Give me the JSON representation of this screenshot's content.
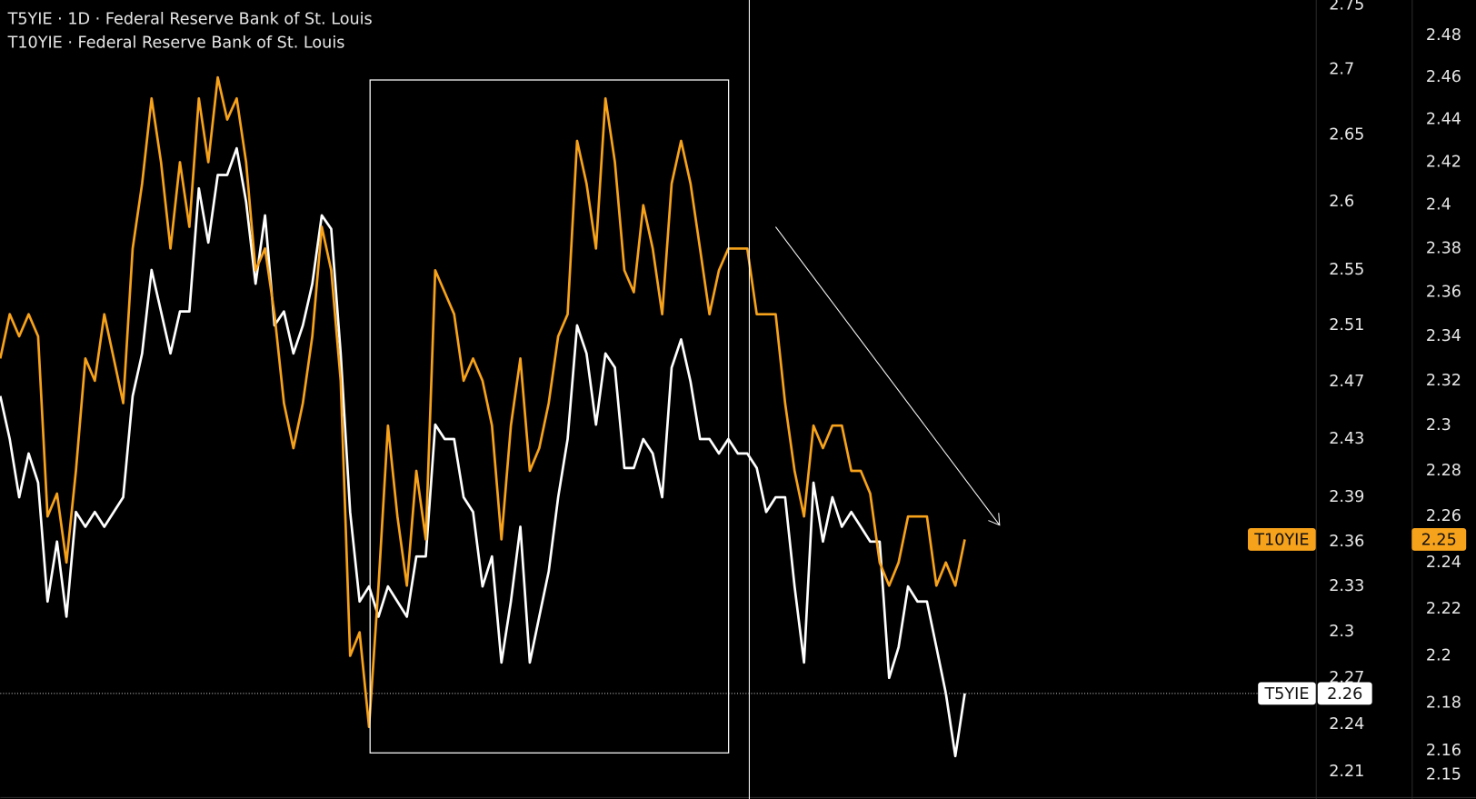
{
  "chart_data": {
    "type": "line",
    "legend_lines": [
      "T5YIE · 1D · Federal Reserve Bank of St. Louis",
      "T10YIE · Federal Reserve Bank of St. Louis"
    ],
    "log": true,
    "grid": false,
    "series": [
      {
        "name": "T5YIE",
        "color": "#ffffff",
        "axis": "y",
        "values": [
          2.46,
          2.43,
          2.39,
          2.42,
          2.4,
          2.32,
          2.36,
          2.31,
          2.38,
          2.37,
          2.38,
          2.37,
          2.38,
          2.39,
          2.46,
          2.49,
          2.55,
          2.52,
          2.49,
          2.52,
          2.52,
          2.61,
          2.57,
          2.62,
          2.62,
          2.64,
          2.6,
          2.54,
          2.59,
          2.51,
          2.52,
          2.49,
          2.51,
          2.54,
          2.59,
          2.58,
          2.49,
          2.38,
          2.32,
          2.33,
          2.31,
          2.33,
          2.32,
          2.31,
          2.35,
          2.35,
          2.44,
          2.43,
          2.43,
          2.39,
          2.38,
          2.33,
          2.35,
          2.28,
          2.32,
          2.37,
          2.28,
          2.31,
          2.34,
          2.39,
          2.43,
          2.51,
          2.49,
          2.44,
          2.49,
          2.48,
          2.41,
          2.41,
          2.43,
          2.42,
          2.39,
          2.48,
          2.5,
          2.47,
          2.43,
          2.43,
          2.42,
          2.43,
          2.42,
          2.42,
          2.41,
          2.38,
          2.39,
          2.39,
          2.33,
          2.28,
          2.4,
          2.36,
          2.39,
          2.37,
          2.38,
          2.37,
          2.36,
          2.36,
          2.27,
          2.29,
          2.33,
          2.32,
          2.32,
          2.29,
          2.26,
          2.22,
          2.26
        ]
      },
      {
        "name": "T10YIE",
        "color": "#f7a21b",
        "axis": "y2",
        "values": [
          2.33,
          2.35,
          2.34,
          2.35,
          2.34,
          2.26,
          2.27,
          2.24,
          2.28,
          2.33,
          2.32,
          2.35,
          2.33,
          2.31,
          2.38,
          2.41,
          2.45,
          2.42,
          2.38,
          2.42,
          2.39,
          2.45,
          2.42,
          2.46,
          2.44,
          2.45,
          2.42,
          2.37,
          2.38,
          2.35,
          2.31,
          2.29,
          2.31,
          2.34,
          2.39,
          2.37,
          2.32,
          2.2,
          2.21,
          2.17,
          2.23,
          2.3,
          2.26,
          2.23,
          2.28,
          2.25,
          2.37,
          2.36,
          2.35,
          2.32,
          2.33,
          2.32,
          2.3,
          2.25,
          2.3,
          2.33,
          2.28,
          2.29,
          2.31,
          2.34,
          2.35,
          2.43,
          2.41,
          2.38,
          2.45,
          2.42,
          2.37,
          2.36,
          2.4,
          2.38,
          2.35,
          2.41,
          2.43,
          2.41,
          2.38,
          2.35,
          2.37,
          2.38,
          2.38,
          2.38,
          2.35,
          2.35,
          2.35,
          2.31,
          2.28,
          2.26,
          2.3,
          2.29,
          2.3,
          2.3,
          2.28,
          2.28,
          2.27,
          2.24,
          2.23,
          2.24,
          2.26,
          2.26,
          2.26,
          2.23,
          2.24,
          2.23,
          2.25
        ]
      }
    ],
    "ylim": [
      2.193,
      2.754
    ],
    "yticks": [
      2.21,
      2.24,
      2.27,
      2.3,
      2.33,
      2.36,
      2.39,
      2.43,
      2.47,
      2.51,
      2.55,
      2.6,
      2.65,
      2.7,
      2.75
    ],
    "y2lim": [
      2.14,
      2.497
    ],
    "y2ticks": [
      2.15,
      2.16,
      2.18,
      2.2,
      2.22,
      2.24,
      2.26,
      2.28,
      2.3,
      2.32,
      2.34,
      2.36,
      2.38,
      2.4,
      2.42,
      2.44,
      2.46,
      2.48
    ]
  }
}
